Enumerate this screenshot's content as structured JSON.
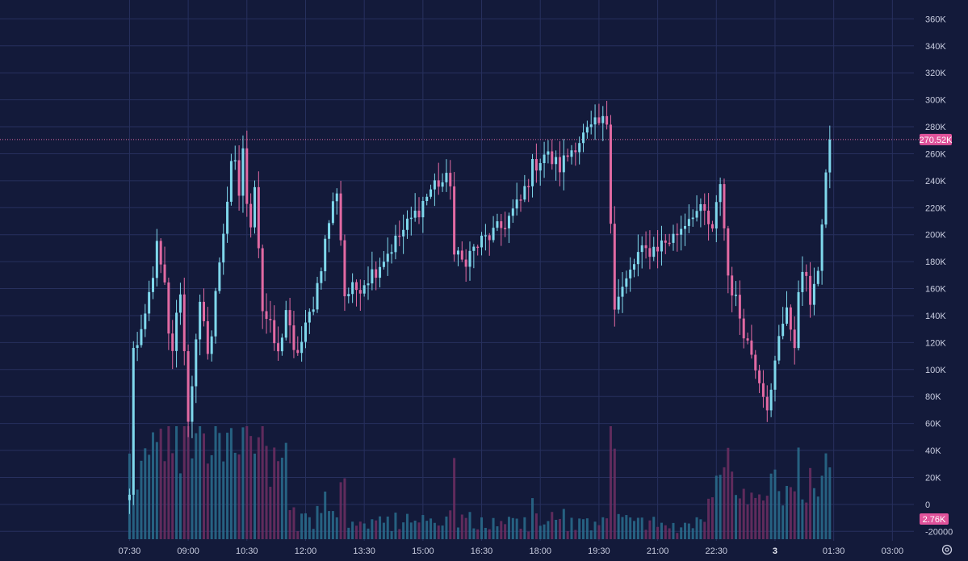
{
  "chart_data": {
    "type": "candlestick",
    "theme": {
      "background": "#131a3a",
      "grid": "#27305e",
      "up": "#7fd8ec",
      "down": "#e26aa3",
      "badge": "#e0539b"
    },
    "y_ticks": [
      "360K",
      "340K",
      "320K",
      "300K",
      "280K",
      "260K",
      "240K",
      "220K",
      "200K",
      "180K",
      "160K",
      "140K",
      "120K",
      "100K",
      "80K",
      "60K",
      "40K",
      "20K",
      "0",
      "-20000"
    ],
    "y_tick_values": [
      360000,
      340000,
      320000,
      300000,
      280000,
      260000,
      240000,
      220000,
      200000,
      180000,
      160000,
      140000,
      120000,
      100000,
      80000,
      60000,
      40000,
      20000,
      0,
      -20000
    ],
    "y_range": [
      -27000,
      368000
    ],
    "x_ticks": [
      "07:30",
      "09:00",
      "10:30",
      "12:00",
      "13:30",
      "15:00",
      "16:30",
      "18:00",
      "19:30",
      "21:00",
      "22:30",
      "3",
      "01:30",
      "03:00"
    ],
    "x_tick_hours": [
      7.5,
      9,
      10.5,
      12,
      13.5,
      15,
      16.5,
      18,
      19.5,
      21,
      22.5,
      24,
      25.5,
      27
    ],
    "x_bold": [
      "3"
    ],
    "x_range_hours": [
      7.45,
      27.55
    ],
    "last_price_label": "270.52K",
    "last_price_value": 270520,
    "volume_label": "2.76K",
    "settings_icon": "gear-icon",
    "key_points": [
      [
        7.5,
        5000
      ],
      [
        7.55,
        120000
      ],
      [
        7.75,
        115000
      ],
      [
        8.0,
        155000
      ],
      [
        8.2,
        190000
      ],
      [
        8.4,
        160000
      ],
      [
        8.55,
        105000
      ],
      [
        8.8,
        160000
      ],
      [
        9.0,
        65000
      ],
      [
        9.3,
        145000
      ],
      [
        9.55,
        110000
      ],
      [
        9.75,
        170000
      ],
      [
        9.95,
        215000
      ],
      [
        10.15,
        260000
      ],
      [
        10.3,
        230000
      ],
      [
        10.4,
        265000
      ],
      [
        10.55,
        195000
      ],
      [
        10.7,
        240000
      ],
      [
        10.9,
        145000
      ],
      [
        11.1,
        130000
      ],
      [
        11.3,
        110000
      ],
      [
        11.5,
        145000
      ],
      [
        11.7,
        110000
      ],
      [
        11.9,
        120000
      ],
      [
        12.25,
        155000
      ],
      [
        12.6,
        210000
      ],
      [
        12.85,
        240000
      ],
      [
        12.95,
        155000
      ],
      [
        13.3,
        160000
      ],
      [
        13.8,
        175000
      ],
      [
        14.3,
        195000
      ],
      [
        14.8,
        215000
      ],
      [
        15.3,
        238000
      ],
      [
        15.7,
        240000
      ],
      [
        15.8,
        185000
      ],
      [
        16.0,
        180000
      ],
      [
        16.5,
        195000
      ],
      [
        17.0,
        205000
      ],
      [
        17.5,
        225000
      ],
      [
        17.8,
        250000
      ],
      [
        18.1,
        260000
      ],
      [
        18.5,
        250000
      ],
      [
        18.9,
        268000
      ],
      [
        19.4,
        280000
      ],
      [
        19.75,
        285000
      ],
      [
        19.85,
        145000
      ],
      [
        20.2,
        165000
      ],
      [
        20.5,
        185000
      ],
      [
        20.9,
        190000
      ],
      [
        21.4,
        198000
      ],
      [
        21.9,
        218000
      ],
      [
        22.2,
        215000
      ],
      [
        22.4,
        200000
      ],
      [
        22.6,
        240000
      ],
      [
        22.8,
        170000
      ],
      [
        23.0,
        150000
      ],
      [
        23.3,
        120000
      ],
      [
        23.5,
        105000
      ],
      [
        23.7,
        85000
      ],
      [
        23.85,
        70000
      ],
      [
        24.05,
        115000
      ],
      [
        24.3,
        150000
      ],
      [
        24.5,
        110000
      ],
      [
        24.65,
        185000
      ],
      [
        24.9,
        150000
      ],
      [
        25.05,
        160000
      ],
      [
        25.3,
        245000
      ],
      [
        25.45,
        270520
      ]
    ],
    "candle_interval_hours": 0.1
  }
}
